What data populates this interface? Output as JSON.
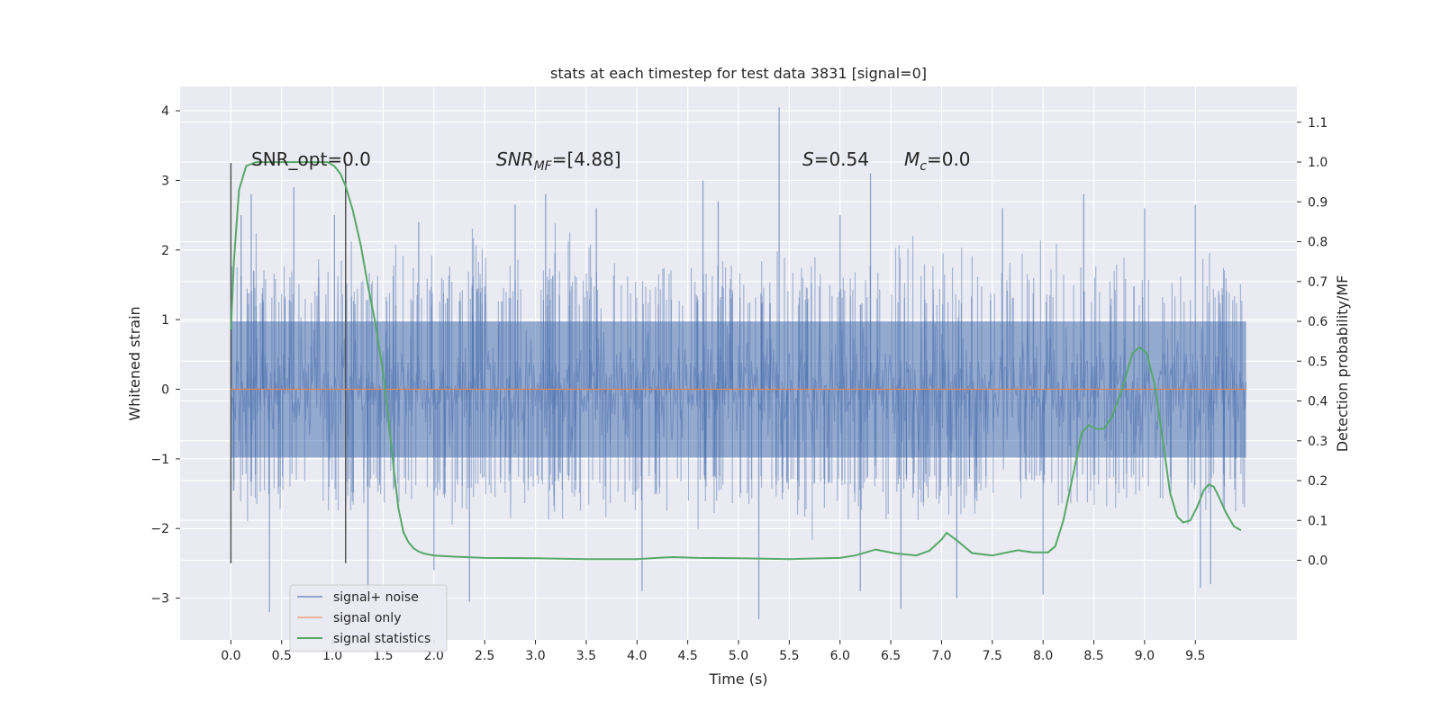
{
  "chart_data": {
    "type": "line",
    "title": "stats at each timestep for test data 3831 [signal=0]",
    "xlabel": "Time (s)",
    "ylabel": "Whitened strain",
    "y2label": "Detection probability/MF",
    "xlim": [
      -0.5,
      10.5
    ],
    "ylim": [
      -3.6,
      4.35
    ],
    "y2lim": [
      -0.2,
      1.19
    ],
    "xticks": [
      "0.0",
      "0.5",
      "1.0",
      "1.5",
      "2.0",
      "2.5",
      "3.0",
      "3.5",
      "4.0",
      "4.5",
      "5.0",
      "5.5",
      "6.0",
      "6.5",
      "7.0",
      "7.5",
      "8.0",
      "8.5",
      "9.0",
      "9.5"
    ],
    "yticks": [
      "−3",
      "−2",
      "−1",
      "0",
      "1",
      "2",
      "3",
      "4"
    ],
    "y2ticks": [
      "0.0",
      "0.1",
      "0.2",
      "0.3",
      "0.4",
      "0.5",
      "0.6",
      "0.7",
      "0.8",
      "0.9",
      "1.0",
      "1.1"
    ],
    "grid": true,
    "legend_position": "lower-left",
    "annotations": {
      "snr_opt": "SNR_opt=0.0",
      "snr_mf_main": "SNR",
      "snr_mf_sub": "MF",
      "snr_mf_value": "=[4.88]",
      "s_main": "S",
      "s_value": "=0.54",
      "mc_main": "M",
      "mc_sub": "c",
      "mc_value": "=0.0"
    },
    "vertical_markers": [
      0.0,
      1.13
    ],
    "series": [
      {
        "name": "signal+ noise",
        "color": "#4c72b0",
        "opacity": 0.5,
        "description_type": "noise",
        "x_range": [
          0.0,
          10.0
        ],
        "band_typical": [
          -1.4,
          1.5
        ],
        "spikes": [
          {
            "x": 0.1,
            "y": 2.5
          },
          {
            "x": 0.2,
            "y": 2.8
          },
          {
            "x": 0.38,
            "y": -3.2
          },
          {
            "x": 0.62,
            "y": 2.9
          },
          {
            "x": 1.02,
            "y": 2.5
          },
          {
            "x": 1.35,
            "y": -2.9
          },
          {
            "x": 1.85,
            "y": 2.4
          },
          {
            "x": 2.0,
            "y": -2.6
          },
          {
            "x": 2.35,
            "y": -3.05
          },
          {
            "x": 2.8,
            "y": 2.65
          },
          {
            "x": 3.1,
            "y": 2.8
          },
          {
            "x": 3.6,
            "y": 2.6
          },
          {
            "x": 4.05,
            "y": -2.9
          },
          {
            "x": 4.65,
            "y": 3.0
          },
          {
            "x": 4.8,
            "y": 2.7
          },
          {
            "x": 5.2,
            "y": -3.3
          },
          {
            "x": 5.4,
            "y": 4.05
          },
          {
            "x": 6.0,
            "y": 2.5
          },
          {
            "x": 6.3,
            "y": 3.1
          },
          {
            "x": 6.2,
            "y": -2.9
          },
          {
            "x": 6.6,
            "y": -3.15
          },
          {
            "x": 7.15,
            "y": -3.0
          },
          {
            "x": 7.6,
            "y": 2.6
          },
          {
            "x": 8.0,
            "y": -2.95
          },
          {
            "x": 8.4,
            "y": 2.8
          },
          {
            "x": 9.0,
            "y": 2.6
          },
          {
            "x": 9.5,
            "y": 2.65
          },
          {
            "x": 9.55,
            "y": -2.85
          },
          {
            "x": 9.65,
            "y": -2.8
          }
        ]
      },
      {
        "name": "signal only",
        "color": "#dd8452",
        "x": [
          0.0,
          10.0
        ],
        "y": [
          0.0,
          0.0
        ]
      },
      {
        "name": "signal statistics",
        "color": "#55a868",
        "axis": "right",
        "x": [
          0.0,
          0.03,
          0.08,
          0.15,
          0.25,
          0.4,
          0.6,
          0.8,
          0.95,
          1.02,
          1.08,
          1.13,
          1.2,
          1.28,
          1.35,
          1.42,
          1.5,
          1.55,
          1.6,
          1.65,
          1.7,
          1.75,
          1.8,
          1.85,
          1.9,
          2.0,
          2.2,
          2.5,
          3.0,
          3.5,
          4.0,
          4.2,
          4.35,
          4.6,
          5.0,
          5.5,
          6.0,
          6.15,
          6.35,
          6.55,
          6.75,
          6.88,
          7.0,
          7.05,
          7.15,
          7.3,
          7.5,
          7.75,
          7.9,
          8.05,
          8.12,
          8.2,
          8.3,
          8.38,
          8.45,
          8.52,
          8.6,
          8.68,
          8.78,
          8.88,
          8.95,
          9.02,
          9.1,
          9.18,
          9.25,
          9.32,
          9.38,
          9.45,
          9.52,
          9.58,
          9.63,
          9.68,
          9.73,
          9.8,
          9.88,
          9.95
        ],
        "y": [
          0.58,
          0.75,
          0.93,
          0.99,
          1.0,
          1.0,
          1.0,
          1.0,
          1.0,
          0.99,
          0.97,
          0.94,
          0.88,
          0.79,
          0.69,
          0.6,
          0.47,
          0.36,
          0.24,
          0.13,
          0.07,
          0.045,
          0.03,
          0.022,
          0.017,
          0.012,
          0.009,
          0.006,
          0.005,
          0.003,
          0.003,
          0.006,
          0.008,
          0.006,
          0.005,
          0.003,
          0.006,
          0.012,
          0.027,
          0.017,
          0.012,
          0.024,
          0.052,
          0.069,
          0.05,
          0.018,
          0.012,
          0.025,
          0.02,
          0.02,
          0.035,
          0.1,
          0.22,
          0.32,
          0.34,
          0.33,
          0.33,
          0.36,
          0.43,
          0.52,
          0.535,
          0.52,
          0.44,
          0.3,
          0.17,
          0.11,
          0.095,
          0.1,
          0.135,
          0.175,
          0.19,
          0.185,
          0.16,
          0.12,
          0.085,
          0.075
        ]
      }
    ]
  },
  "legend": {
    "items": [
      {
        "label": "signal+ noise",
        "color": "#8fa5cc"
      },
      {
        "label": "signal only",
        "color": "#e8b49a"
      },
      {
        "label": "signal statistics",
        "color": "#55a868"
      }
    ]
  }
}
